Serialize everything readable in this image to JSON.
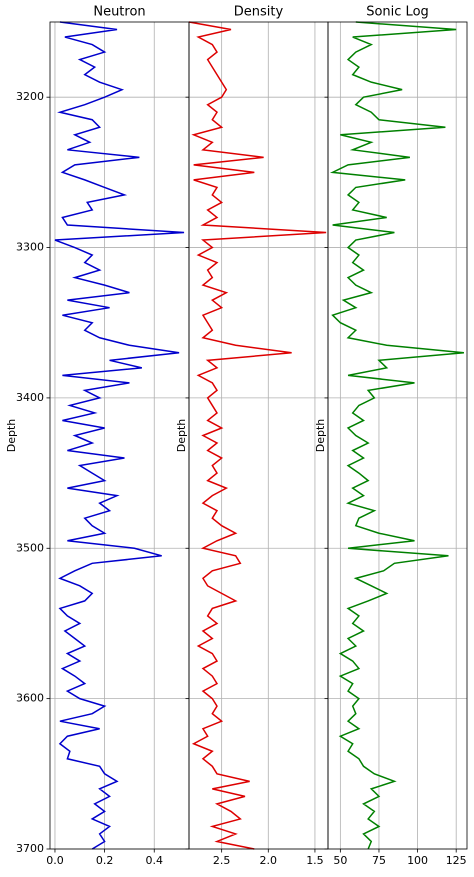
{
  "chart_data": [
    {
      "type": "line",
      "title": "Neutron",
      "ylabel": "Depth",
      "color": "#0000cc",
      "grid": true,
      "show_ytick_labels": true,
      "xlim": [
        -0.02,
        0.54
      ],
      "xticks": [
        {
          "value": 0,
          "label": "0.0"
        },
        0.2,
        0.4
      ],
      "ylim": [
        3150,
        3700
      ],
      "yticks": [
        3200,
        3300,
        3400,
        3500,
        3600,
        3700
      ],
      "depth": [
        3150,
        3155,
        3160,
        3165,
        3170,
        3175,
        3180,
        3185,
        3190,
        3195,
        3200,
        3205,
        3210,
        3215,
        3220,
        3225,
        3230,
        3235,
        3240,
        3245,
        3250,
        3255,
        3260,
        3265,
        3270,
        3275,
        3280,
        3285,
        3290,
        3295,
        3300,
        3305,
        3310,
        3315,
        3320,
        3325,
        3330,
        3335,
        3340,
        3345,
        3350,
        3355,
        3360,
        3365,
        3370,
        3375,
        3380,
        3385,
        3390,
        3395,
        3400,
        3405,
        3410,
        3415,
        3420,
        3425,
        3430,
        3435,
        3440,
        3445,
        3450,
        3455,
        3460,
        3465,
        3470,
        3475,
        3480,
        3485,
        3490,
        3495,
        3500,
        3505,
        3510,
        3515,
        3520,
        3525,
        3530,
        3535,
        3540,
        3545,
        3550,
        3555,
        3560,
        3565,
        3570,
        3575,
        3580,
        3585,
        3590,
        3595,
        3600,
        3605,
        3610,
        3615,
        3620,
        3625,
        3630,
        3635,
        3640,
        3645,
        3650,
        3655,
        3660,
        3665,
        3670,
        3675,
        3680,
        3685,
        3690,
        3695,
        3700
      ],
      "values": [
        0.02,
        0.25,
        0.04,
        0.15,
        0.2,
        0.1,
        0.16,
        0.12,
        0.18,
        0.27,
        0.2,
        0.12,
        0.02,
        0.15,
        0.18,
        0.08,
        0.14,
        0.05,
        0.34,
        0.08,
        0.03,
        0.12,
        0.2,
        0.28,
        0.13,
        0.15,
        0.03,
        0.05,
        0.52,
        0,
        0.08,
        0.15,
        0.12,
        0.18,
        0.08,
        0.2,
        0.3,
        0.05,
        0.22,
        0.03,
        0.15,
        0.12,
        0.18,
        0.3,
        0.5,
        0.22,
        0.35,
        0.03,
        0.3,
        0.12,
        0.18,
        0.06,
        0.16,
        0.03,
        0.2,
        0.08,
        0.15,
        0.05,
        0.28,
        0.1,
        0.15,
        0.2,
        0.05,
        0.25,
        0.18,
        0.22,
        0.12,
        0.15,
        0.2,
        0.05,
        0.32,
        0.43,
        0.15,
        0.08,
        0.02,
        0.1,
        0.15,
        0.12,
        0.02,
        0.05,
        0.1,
        0.04,
        0.08,
        0.12,
        0.05,
        0.1,
        0.03,
        0.08,
        0.12,
        0.05,
        0.1,
        0.2,
        0.15,
        0.02,
        0.18,
        0.05,
        0.02,
        0.06,
        0.05,
        0.18,
        0.2,
        0.25,
        0.18,
        0.22,
        0.16,
        0.2,
        0.15,
        0.22,
        0.18,
        0.2,
        0.15
      ]
    },
    {
      "type": "line",
      "title": "Density",
      "ylabel": "Depth",
      "color": "#dd0000",
      "grid": true,
      "show_ytick_labels": false,
      "xlim": [
        2.85,
        1.36
      ],
      "xticks": [
        2.5,
        {
          "value": 2,
          "label": "2.0"
        },
        1.5
      ],
      "ylim": [
        3150,
        3700
      ],
      "yticks": [
        3200,
        3300,
        3400,
        3500,
        3600,
        3700
      ],
      "depth": [
        3150,
        3155,
        3160,
        3165,
        3170,
        3175,
        3180,
        3185,
        3190,
        3195,
        3200,
        3205,
        3210,
        3215,
        3220,
        3225,
        3230,
        3235,
        3240,
        3245,
        3250,
        3255,
        3260,
        3265,
        3270,
        3275,
        3280,
        3285,
        3290,
        3295,
        3300,
        3305,
        3310,
        3315,
        3320,
        3325,
        3330,
        3335,
        3340,
        3345,
        3350,
        3355,
        3360,
        3365,
        3370,
        3375,
        3380,
        3385,
        3390,
        3395,
        3400,
        3405,
        3410,
        3415,
        3420,
        3425,
        3430,
        3435,
        3440,
        3445,
        3450,
        3455,
        3460,
        3465,
        3470,
        3475,
        3480,
        3485,
        3490,
        3495,
        3500,
        3505,
        3510,
        3515,
        3520,
        3525,
        3530,
        3535,
        3540,
        3545,
        3550,
        3555,
        3560,
        3565,
        3570,
        3575,
        3580,
        3585,
        3590,
        3595,
        3600,
        3605,
        3610,
        3615,
        3620,
        3625,
        3630,
        3635,
        3640,
        3645,
        3650,
        3655,
        3660,
        3665,
        3670,
        3675,
        3680,
        3685,
        3690,
        3695,
        3700
      ],
      "values": [
        2.85,
        2.4,
        2.75,
        2.6,
        2.55,
        2.65,
        2.6,
        2.55,
        2.5,
        2.45,
        2.5,
        2.65,
        2.55,
        2.6,
        2.5,
        2.8,
        2.6,
        2.7,
        2.05,
        2.8,
        2.15,
        2.8,
        2.55,
        2.6,
        2.5,
        2.65,
        2.55,
        2.7,
        1.38,
        2.7,
        2.6,
        2.75,
        2.55,
        2.65,
        2.6,
        2.7,
        2.45,
        2.6,
        2.5,
        2.7,
        2.65,
        2.6,
        2.7,
        2.35,
        1.75,
        2.65,
        2.55,
        2.75,
        2.6,
        2.55,
        2.65,
        2.6,
        2.55,
        2.65,
        2.5,
        2.7,
        2.55,
        2.65,
        2.5,
        2.6,
        2.55,
        2.65,
        2.45,
        2.6,
        2.7,
        2.55,
        2.6,
        2.5,
        2.35,
        2.55,
        2.7,
        2.35,
        2.3,
        2.6,
        2.7,
        2.65,
        2.5,
        2.35,
        2.6,
        2.65,
        2.55,
        2.7,
        2.6,
        2.75,
        2.6,
        2.55,
        2.7,
        2.6,
        2.55,
        2.7,
        2.6,
        2.55,
        2.6,
        2.5,
        2.7,
        2.65,
        2.8,
        2.6,
        2.7,
        2.6,
        2.55,
        2.2,
        2.6,
        2.25,
        2.55,
        2.4,
        2.3,
        2.6,
        2.35,
        2.55,
        2.15
      ]
    },
    {
      "type": "line",
      "title": "Sonic Log",
      "ylabel": "Depth",
      "color": "#008000",
      "grid": true,
      "show_ytick_labels": false,
      "xlim": [
        42,
        132
      ],
      "xticks": [
        50,
        75,
        100,
        125
      ],
      "ylim": [
        3150,
        3700
      ],
      "yticks": [
        3200,
        3300,
        3400,
        3500,
        3600,
        3700
      ],
      "depth": [
        3150,
        3155,
        3160,
        3165,
        3170,
        3175,
        3180,
        3185,
        3190,
        3195,
        3200,
        3205,
        3210,
        3215,
        3220,
        3225,
        3230,
        3235,
        3240,
        3245,
        3250,
        3255,
        3260,
        3265,
        3270,
        3275,
        3280,
        3285,
        3290,
        3295,
        3300,
        3305,
        3310,
        3315,
        3320,
        3325,
        3330,
        3335,
        3340,
        3345,
        3350,
        3355,
        3360,
        3365,
        3370,
        3375,
        3380,
        3385,
        3390,
        3395,
        3400,
        3405,
        3410,
        3415,
        3420,
        3425,
        3430,
        3435,
        3440,
        3445,
        3450,
        3455,
        3460,
        3465,
        3470,
        3475,
        3480,
        3485,
        3490,
        3495,
        3500,
        3505,
        3510,
        3515,
        3520,
        3525,
        3530,
        3535,
        3540,
        3545,
        3550,
        3555,
        3560,
        3565,
        3570,
        3575,
        3580,
        3585,
        3590,
        3595,
        3600,
        3605,
        3610,
        3615,
        3620,
        3625,
        3630,
        3635,
        3640,
        3645,
        3650,
        3655,
        3660,
        3665,
        3670,
        3675,
        3680,
        3685,
        3690,
        3695,
        3700
      ],
      "values": [
        60,
        125,
        58,
        70,
        60,
        55,
        62,
        58,
        70,
        90,
        65,
        60,
        70,
        75,
        118,
        50,
        70,
        58,
        95,
        55,
        45,
        92,
        60,
        55,
        62,
        58,
        80,
        45,
        85,
        60,
        55,
        62,
        58,
        65,
        55,
        60,
        70,
        52,
        60,
        45,
        50,
        60,
        55,
        80,
        130,
        75,
        80,
        55,
        98,
        68,
        72,
        62,
        58,
        65,
        55,
        60,
        68,
        58,
        65,
        55,
        62,
        68,
        58,
        65,
        55,
        72,
        62,
        60,
        75,
        98,
        55,
        120,
        85,
        78,
        60,
        70,
        80,
        68,
        55,
        62,
        58,
        65,
        55,
        60,
        50,
        58,
        62,
        50,
        58,
        55,
        62,
        58,
        60,
        55,
        62,
        50,
        58,
        55,
        62,
        65,
        72,
        85,
        70,
        75,
        65,
        72,
        68,
        75,
        65,
        70,
        68
      ]
    }
  ]
}
